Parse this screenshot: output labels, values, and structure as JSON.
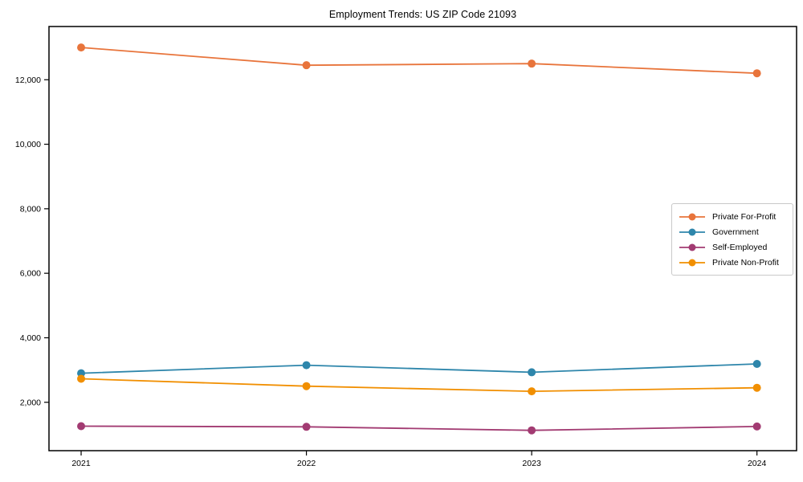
{
  "chart_data": {
    "type": "line",
    "title": "Employment Trends: US ZIP Code 21093",
    "categories": [
      "2021",
      "2022",
      "2023",
      "2024"
    ],
    "series": [
      {
        "name": "Private For-Profit",
        "color": "#E8743B",
        "values": [
          13000,
          12450,
          12500,
          12200
        ]
      },
      {
        "name": "Government",
        "color": "#2E86AB",
        "values": [
          2900,
          3150,
          2930,
          3190
        ]
      },
      {
        "name": "Self-Employed",
        "color": "#A23B72",
        "values": [
          1260,
          1240,
          1130,
          1250
        ]
      },
      {
        "name": "Private Non-Profit",
        "color": "#F18F01",
        "values": [
          2730,
          2500,
          2340,
          2450
        ]
      }
    ],
    "xlabel": "",
    "ylabel": "",
    "ylim": [
      500,
      13650
    ],
    "yticks": [
      2000,
      4000,
      6000,
      8000,
      10000,
      12000
    ],
    "grid": false,
    "legend_position": "center right",
    "marker": "circle"
  }
}
